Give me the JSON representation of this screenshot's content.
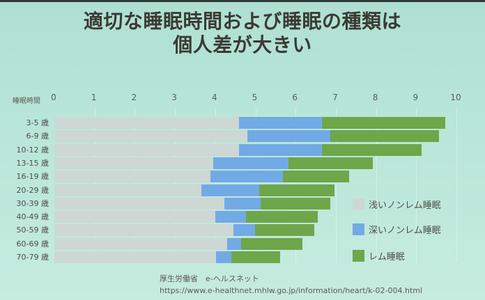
{
  "title": {
    "line1": "適切な睡眠時間および睡眠の種類は",
    "line2": "個人差が大きい"
  },
  "colors": {
    "light_nonrem": "#cdd7d3",
    "deep_nonrem": "#72aae6",
    "rem": "#6ea64a",
    "background": "#b8e6d8",
    "text": "#3c3a35"
  },
  "legend": [
    {
      "label": "浅いノンレム睡眠",
      "color": "#cdd7d3"
    },
    {
      "label": "深いノンレム睡眠",
      "color": "#72aae6"
    },
    {
      "label": "レム睡眠",
      "color": "#6ea64a"
    }
  ],
  "source": {
    "line1": "厚生労働省　e-ヘルスネット",
    "line2": "https://www.e-healthnet.mhlw.go.jp/information/heart/k-02-004.html"
  },
  "chart_data": {
    "type": "bar",
    "orientation": "horizontal",
    "stacked": true,
    "title": "適切な睡眠時間および睡眠の種類は個人差が大きい",
    "xlabel": "睡眠時間",
    "ylabel": "",
    "xlim": [
      0,
      10
    ],
    "x_ticks": [
      0,
      1,
      2,
      3,
      4,
      5,
      6,
      7,
      8,
      9,
      10
    ],
    "grid": true,
    "legend_position": "right-bottom",
    "categories": [
      "3-5 歳",
      "6-9 歳",
      "10-12 歳",
      "13-15 歳",
      "16-19 歳",
      "20-29 歳",
      "30-39 歳",
      "40-49 歳",
      "50-59 歳",
      "60-69 歳",
      "70-79 歳"
    ],
    "series": [
      {
        "name": "浅いノンレム睡眠",
        "color": "#cdd7d3",
        "values": [
          4.6,
          4.8,
          4.6,
          3.95,
          3.88,
          3.66,
          4.23,
          4.0,
          4.45,
          4.3,
          4.02
        ]
      },
      {
        "name": "深いノンレム睡眠",
        "color": "#72aae6",
        "values": [
          2.05,
          2.06,
          2.05,
          1.87,
          1.8,
          1.44,
          0.9,
          0.77,
          0.54,
          0.35,
          0.38
        ]
      },
      {
        "name": "レム睡眠",
        "color": "#6ea64a",
        "values": [
          3.07,
          2.71,
          2.48,
          2.1,
          1.65,
          1.87,
          1.73,
          1.78,
          1.47,
          1.52,
          1.22
        ]
      }
    ],
    "totals": [
      9.72,
      9.57,
      9.13,
      7.92,
      7.33,
      6.97,
      6.86,
      6.55,
      6.46,
      6.17,
      5.62
    ],
    "source": "厚生労働省 e-ヘルスネット"
  }
}
